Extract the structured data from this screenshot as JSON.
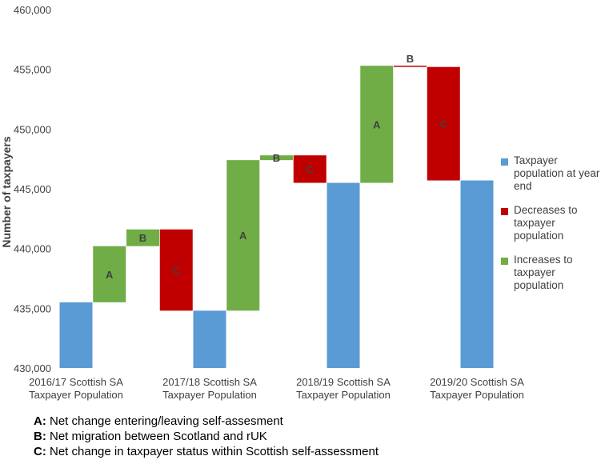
{
  "chart_data": {
    "type": "waterfall",
    "ylabel": "Number of taxpayers",
    "ylim": [
      430000,
      460000
    ],
    "yticks": [
      "430,000",
      "435,000",
      "440,000",
      "445,000",
      "450,000",
      "455,000",
      "460,000"
    ],
    "categories": [
      [
        "2016/17 Scottish SA",
        "Taxpayer Population"
      ],
      [
        "2017/18 Scottish SA",
        "Taxpayer Population"
      ],
      [
        "2018/19 Scottish SA",
        "Taxpayer Population"
      ],
      [
        "2019/20 Scottish SA",
        "Taxpayer Population"
      ]
    ],
    "series_colors": {
      "total": "#5b9bd5",
      "decrease": "#c00000",
      "increase": "#70ad47"
    },
    "bars": [
      {
        "type": "total",
        "low": 430000,
        "high": 435500,
        "slot": 0
      },
      {
        "type": "increase",
        "low": 435500,
        "high": 440200,
        "label": "A",
        "slot": 1
      },
      {
        "type": "increase",
        "low": 440200,
        "high": 441600,
        "label": "B",
        "slot": 2
      },
      {
        "type": "decrease",
        "low": 434800,
        "high": 441600,
        "label": "C",
        "slot": 3
      },
      {
        "type": "total",
        "low": 430000,
        "high": 434800,
        "slot": 4
      },
      {
        "type": "increase",
        "low": 434800,
        "high": 447400,
        "label": "A",
        "slot": 5
      },
      {
        "type": "increase",
        "low": 447400,
        "high": 447800,
        "label": "B",
        "slot": 6
      },
      {
        "type": "decrease",
        "low": 445500,
        "high": 447800,
        "label": "C",
        "slot": 7
      },
      {
        "type": "total",
        "low": 430000,
        "high": 445500,
        "slot": 8
      },
      {
        "type": "increase",
        "low": 445500,
        "high": 455300,
        "label": "A",
        "slot": 9
      },
      {
        "type": "decrease",
        "low": 455200,
        "high": 455300,
        "label": "B",
        "slot": 10
      },
      {
        "type": "decrease",
        "low": 445700,
        "high": 455200,
        "label": "C",
        "slot": 11
      },
      {
        "type": "total",
        "low": 430000,
        "high": 445700,
        "slot": 12
      }
    ]
  },
  "legend": [
    {
      "key": "total",
      "label": "Taxpayer population at year end"
    },
    {
      "key": "decrease",
      "label": "Decreases to taxpayer population"
    },
    {
      "key": "increase",
      "label": "Increases to taxpayer population"
    }
  ],
  "notes": [
    {
      "key": "A:",
      "text": "Net change entering/leaving self-assesment"
    },
    {
      "key": "B:",
      "text": "Net migration between Scotland and rUK"
    },
    {
      "key": "C:",
      "text": "Net change in taxpayer status within Scottish self-assessment"
    }
  ]
}
